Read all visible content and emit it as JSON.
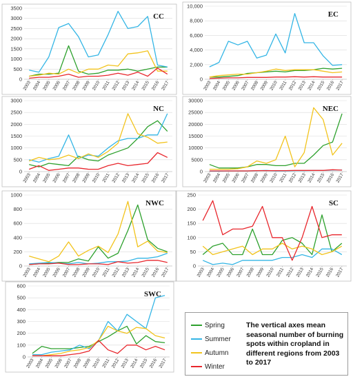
{
  "note": "The vertical axes mean seasonal number of burning spots within cropland in different regions from 2003 to 2017",
  "colors": {
    "Spring": "#2ca02c",
    "Summer": "#33b5e5",
    "Autumn": "#f2c31b",
    "Winter": "#e8262c"
  },
  "chart_data": [
    {
      "type": "line",
      "title": "CC",
      "x": [
        "2003",
        "2004",
        "2005",
        "2006",
        "2007",
        "2008",
        "2009",
        "2010",
        "2011",
        "2012",
        "2013",
        "2014",
        "2015",
        "2016",
        "2017"
      ],
      "ylim": [
        0,
        3500
      ],
      "yticks": [
        "0",
        "500",
        "1000",
        "1500",
        "2000",
        "2500",
        "3000",
        "3500"
      ],
      "series": [
        {
          "name": "Spring",
          "values": [
            150,
            250,
            250,
            300,
            1650,
            400,
            250,
            300,
            450,
            450,
            500,
            400,
            500,
            600,
            600
          ]
        },
        {
          "name": "Summer",
          "values": [
            450,
            350,
            1100,
            2550,
            2750,
            2100,
            1100,
            1200,
            2200,
            3350,
            2500,
            2600,
            3100,
            700,
            600
          ]
        },
        {
          "name": "Autumn",
          "values": [
            150,
            200,
            300,
            250,
            500,
            300,
            500,
            500,
            700,
            650,
            1250,
            1300,
            1400,
            400,
            400
          ]
        },
        {
          "name": "Winter",
          "values": [
            50,
            100,
            100,
            150,
            250,
            100,
            150,
            150,
            200,
            300,
            200,
            350,
            150,
            550,
            250
          ]
        }
      ]
    },
    {
      "type": "line",
      "title": "EC",
      "x": [
        "2003",
        "2004",
        "2005",
        "2006",
        "2007",
        "2008",
        "2009",
        "2010",
        "2011",
        "2012",
        "2013",
        "2014",
        "2015",
        "2016",
        "2017"
      ],
      "ylim": [
        0,
        10000
      ],
      "yticks": [
        "0",
        "2,000",
        "4,000",
        "6,000",
        "8,000",
        "10,000"
      ],
      "series": [
        {
          "name": "Spring",
          "values": [
            300,
            300,
            400,
            500,
            800,
            900,
            1000,
            1100,
            1000,
            1200,
            1200,
            1300,
            1500,
            1400,
            1500
          ]
        },
        {
          "name": "Summer",
          "values": [
            1700,
            2300,
            5200,
            4700,
            5200,
            2900,
            3300,
            6200,
            3600,
            9000,
            5000,
            5000,
            3200,
            1900,
            2000
          ]
        },
        {
          "name": "Autumn",
          "values": [
            300,
            500,
            600,
            700,
            700,
            900,
            1100,
            1400,
            1200,
            1300,
            1300,
            1300,
            1100,
            900,
            1000
          ]
        },
        {
          "name": "Winter",
          "values": [
            100,
            150,
            200,
            200,
            250,
            250,
            250,
            300,
            300,
            350,
            300,
            350,
            300,
            300,
            300
          ]
        }
      ]
    },
    {
      "type": "line",
      "title": "NC",
      "x": [
        "2003",
        "2004",
        "2005",
        "2006",
        "2007",
        "2008",
        "2009",
        "2010",
        "2011",
        "2012",
        "2013",
        "2014",
        "2015",
        "2016",
        "2017"
      ],
      "ylim": [
        0,
        3000
      ],
      "yticks": [
        "0",
        "500",
        "1000",
        "1500",
        "2000",
        "2500",
        "3000"
      ],
      "series": [
        {
          "name": "Spring",
          "values": [
            300,
            200,
            350,
            300,
            250,
            650,
            500,
            450,
            700,
            850,
            1000,
            1400,
            1900,
            2150,
            1700
          ]
        },
        {
          "name": "Summer",
          "values": [
            500,
            400,
            550,
            650,
            1550,
            550,
            700,
            650,
            1000,
            1300,
            1400,
            1400,
            1550,
            1550,
            2450
          ]
        },
        {
          "name": "Autumn",
          "values": [
            450,
            600,
            500,
            550,
            700,
            550,
            750,
            600,
            850,
            1200,
            2450,
            1600,
            1450,
            1200,
            1250
          ]
        },
        {
          "name": "Winter",
          "values": [
            100,
            250,
            50,
            100,
            150,
            150,
            100,
            100,
            250,
            350,
            250,
            300,
            350,
            800,
            600
          ]
        }
      ]
    },
    {
      "type": "line",
      "title": "NEC",
      "x": [
        "2003",
        "2004",
        "2005",
        "2006",
        "2007",
        "2008",
        "2009",
        "2010",
        "2011",
        "2012",
        "2013",
        "2014",
        "2015",
        "2016",
        "2017"
      ],
      "ylim": [
        0,
        30000
      ],
      "yticks": [
        "0",
        "5000",
        "10000",
        "15000",
        "20000",
        "25000",
        "30000"
      ],
      "series": [
        {
          "name": "Spring",
          "values": [
            3000,
            1500,
            1500,
            1500,
            2000,
            3000,
            3000,
            2500,
            2500,
            3500,
            3500,
            7000,
            11000,
            12500,
            24500
          ]
        },
        {
          "name": "Summer",
          "values": [
            200,
            200,
            300,
            300,
            300,
            400,
            500,
            300,
            300,
            400,
            400,
            500,
            500,
            600,
            700
          ]
        },
        {
          "name": "Autumn",
          "values": [
            1000,
            1000,
            1000,
            1200,
            2000,
            4500,
            3500,
            5000,
            15000,
            2000,
            8000,
            27000,
            22000,
            7000,
            12000
          ]
        },
        {
          "name": "Winter",
          "values": [
            300,
            300,
            300,
            300,
            300,
            400,
            400,
            400,
            400,
            500,
            500,
            500,
            500,
            800,
            600
          ]
        }
      ]
    },
    {
      "type": "line",
      "title": "NWC",
      "x": [
        "2003",
        "2004",
        "2005",
        "2006",
        "2007",
        "2008",
        "2009",
        "2010",
        "2011",
        "2012",
        "2013",
        "2014",
        "2015",
        "2016",
        "2017"
      ],
      "ylim": [
        0,
        1000
      ],
      "yticks": [
        "0",
        "200",
        "400",
        "600",
        "800",
        "1000"
      ],
      "series": [
        {
          "name": "Spring",
          "values": [
            20,
            30,
            40,
            50,
            50,
            100,
            70,
            270,
            110,
            180,
            500,
            860,
            370,
            250,
            200
          ]
        },
        {
          "name": "Summer",
          "values": [
            30,
            40,
            50,
            40,
            30,
            50,
            30,
            40,
            60,
            60,
            70,
            110,
            110,
            130,
            180
          ]
        },
        {
          "name": "Autumn",
          "values": [
            140,
            100,
            60,
            140,
            340,
            140,
            220,
            280,
            190,
            450,
            910,
            270,
            350,
            210,
            190
          ]
        },
        {
          "name": "Winter",
          "values": [
            20,
            30,
            30,
            40,
            20,
            20,
            30,
            30,
            20,
            60,
            40,
            50,
            80,
            80,
            50
          ]
        }
      ]
    },
    {
      "type": "line",
      "title": "SC",
      "x": [
        "2003",
        "2004",
        "2005",
        "2006",
        "2007",
        "2008",
        "2009",
        "2010",
        "2011",
        "2012",
        "2013",
        "2014",
        "2015",
        "2016",
        "2017"
      ],
      "ylim": [
        0,
        250
      ],
      "yticks": [
        "0",
        "50",
        "100",
        "150",
        "200",
        "250"
      ],
      "series": [
        {
          "name": "Spring",
          "values": [
            40,
            70,
            80,
            40,
            40,
            130,
            40,
            40,
            90,
            100,
            80,
            40,
            180,
            50,
            80
          ]
        },
        {
          "name": "Summer",
          "values": [
            20,
            5,
            10,
            5,
            20,
            20,
            20,
            20,
            30,
            30,
            40,
            30,
            60,
            60,
            40
          ]
        },
        {
          "name": "Autumn",
          "values": [
            70,
            40,
            50,
            60,
            70,
            40,
            60,
            60,
            80,
            60,
            70,
            60,
            40,
            50,
            70
          ]
        },
        {
          "name": "Winter",
          "values": [
            160,
            230,
            110,
            130,
            130,
            140,
            210,
            100,
            100,
            20,
            100,
            210,
            100,
            110,
            110
          ]
        }
      ]
    },
    {
      "type": "line",
      "title": "SWC",
      "x": [
        "2003",
        "2004",
        "2005",
        "2006",
        "2007",
        "2008",
        "2009",
        "2010",
        "2011",
        "2012",
        "2013",
        "2014",
        "2015",
        "2016",
        "2017"
      ],
      "ylim": [
        0,
        600
      ],
      "yticks": [
        "0",
        "100",
        "200",
        "300",
        "400",
        "500",
        "600"
      ],
      "series": [
        {
          "name": "Spring",
          "values": [
            30,
            90,
            70,
            70,
            70,
            80,
            90,
            130,
            170,
            220,
            260,
            110,
            180,
            130,
            120
          ]
        },
        {
          "name": "Summer",
          "values": [
            20,
            20,
            40,
            50,
            60,
            100,
            70,
            140,
            300,
            220,
            360,
            300,
            240,
            500,
            520
          ]
        },
        {
          "name": "Autumn",
          "values": [
            10,
            10,
            20,
            30,
            50,
            60,
            80,
            140,
            260,
            220,
            200,
            250,
            240,
            180,
            160
          ]
        },
        {
          "name": "Winter",
          "values": [
            10,
            10,
            10,
            10,
            20,
            30,
            50,
            140,
            60,
            30,
            100,
            100,
            60,
            90,
            60
          ]
        }
      ]
    }
  ]
}
